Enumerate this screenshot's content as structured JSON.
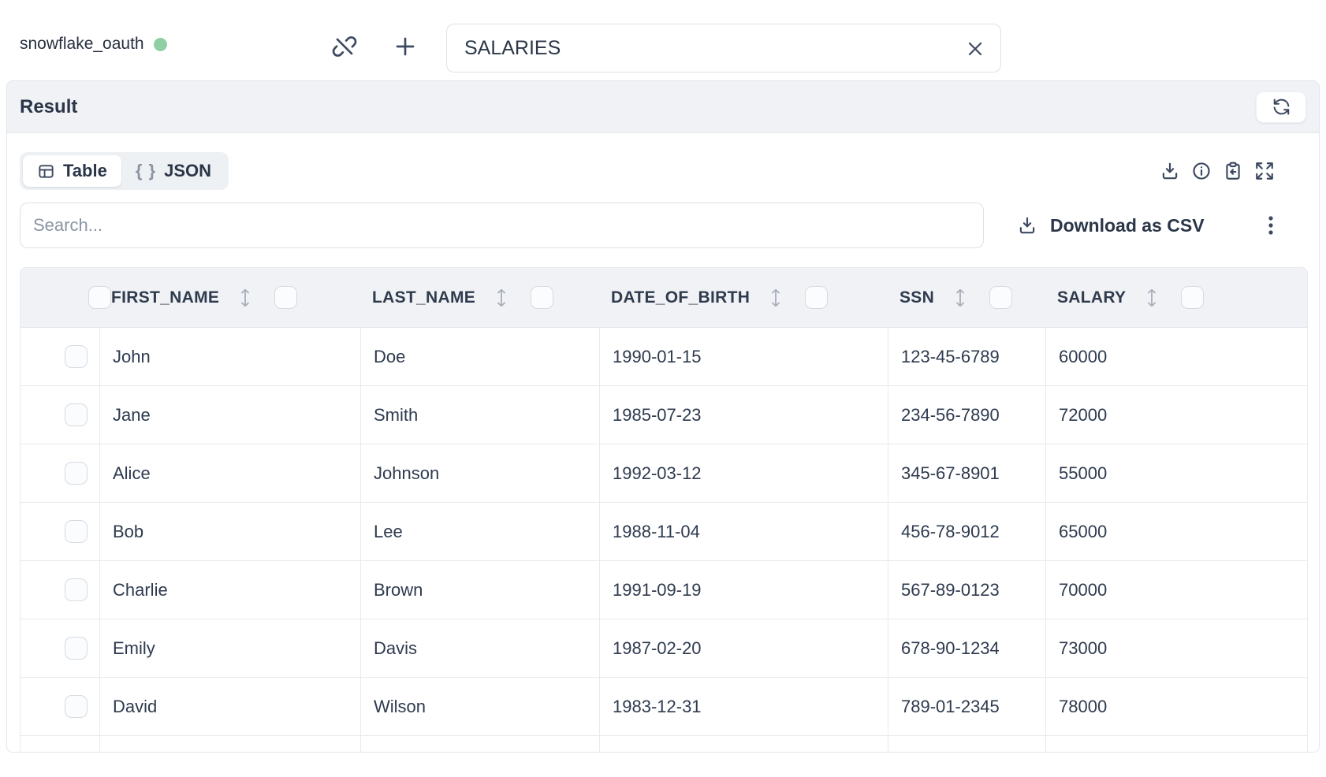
{
  "topbar": {
    "connection_name": "snowflake_oauth",
    "connection_status_color": "#8ED0A4",
    "table_name_value": "SALARIES"
  },
  "result": {
    "title": "Result"
  },
  "view_toggle": {
    "table_label": "Table",
    "json_label": "JSON",
    "braces_glyph": "{ }"
  },
  "search": {
    "placeholder": "Search..."
  },
  "actions": {
    "download_csv": "Download as CSV"
  },
  "icons": {
    "disconnect": "link-off-icon",
    "add": "plus-icon",
    "clear": "x-icon",
    "refresh": "refresh-icon",
    "download": "download-icon",
    "info": "info-icon",
    "paste_result": "clipboard-import-icon",
    "fullscreen": "expand-icon",
    "more": "kebab-vertical-icon",
    "sort": "sort-updown-icon",
    "table_view": "table-grid-icon",
    "json_view": "curly-braces-icon"
  },
  "colors": {
    "accent_blue": "#4A7DF8",
    "status_green": "#8ED0A4",
    "bar_gray": "#F0F2F5",
    "border": "#E5E8ED",
    "text_dark": "#2E3A4E",
    "text_muted": "#8B95A5"
  },
  "table": {
    "columns": [
      "FIRST_NAME",
      "LAST_NAME",
      "DATE_OF_BIRTH",
      "SSN",
      "SALARY"
    ],
    "rows": [
      [
        "John",
        "Doe",
        "1990-01-15",
        "123-45-6789",
        "60000"
      ],
      [
        "Jane",
        "Smith",
        "1985-07-23",
        "234-56-7890",
        "72000"
      ],
      [
        "Alice",
        "Johnson",
        "1992-03-12",
        "345-67-8901",
        "55000"
      ],
      [
        "Bob",
        "Lee",
        "1988-11-04",
        "456-78-9012",
        "65000"
      ],
      [
        "Charlie",
        "Brown",
        "1991-09-19",
        "567-89-0123",
        "70000"
      ],
      [
        "Emily",
        "Davis",
        "1987-02-20",
        "678-90-1234",
        "73000"
      ],
      [
        "David",
        "Wilson",
        "1983-12-31",
        "789-01-2345",
        "78000"
      ]
    ]
  }
}
